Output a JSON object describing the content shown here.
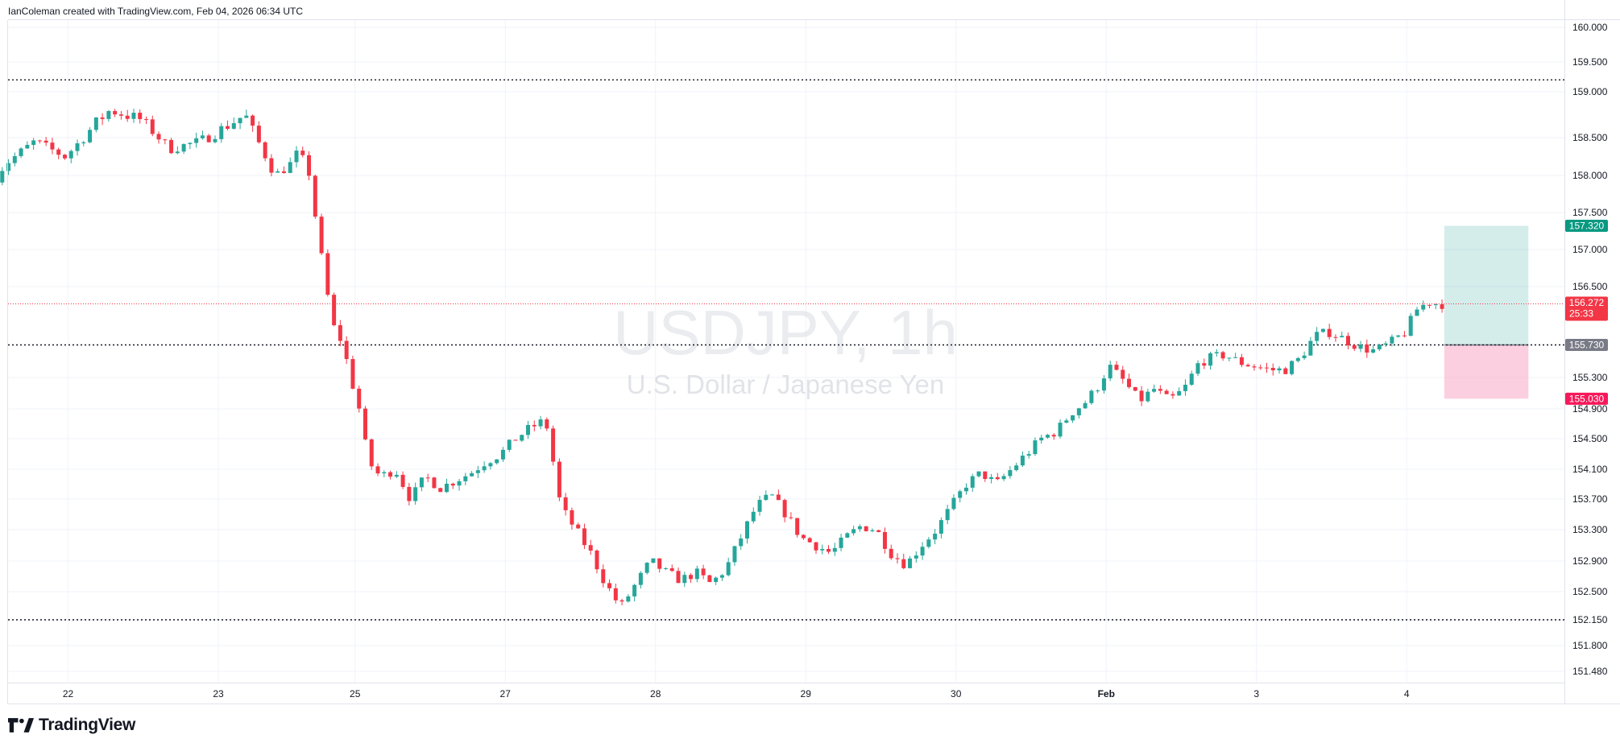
{
  "header": {
    "attribution": "IanColeman created with TradingView.com, Feb 04, 2026 06:34 UTC"
  },
  "watermark": {
    "title": "USDJPY, 1h",
    "subtitle": "U.S. Dollar / Japanese Yen"
  },
  "branding": {
    "logo_text": "TradingView",
    "logo_icon": "tradingview-logo-icon"
  },
  "colors": {
    "up": "#26a69a",
    "down": "#f23645",
    "grid": "#f0f3fa",
    "axis_border": "#e0e3eb",
    "dotted_level": "#131722",
    "price_line": "#f23645",
    "target_fill": "#26a69a",
    "stop_fill": "#f7a8c4",
    "neutral_tag": "#787b86"
  },
  "chart_data": {
    "type": "candlestick",
    "symbol": "USDJPY",
    "interval": "1h",
    "y_axis": {
      "ticks": [
        "160.000",
        "159.500",
        "159.000",
        "158.500",
        "158.000",
        "157.500",
        "157.000",
        "156.500",
        "155.300",
        "154.900",
        "154.500",
        "154.100",
        "153.700",
        "153.300",
        "152.900",
        "152.500",
        "152.150",
        "151.800",
        "151.480"
      ]
    },
    "x_axis": {
      "ticks": [
        {
          "label": "22",
          "pos": 0.48
        },
        {
          "label": "23",
          "pos": 1.48
        },
        {
          "label": "25",
          "pos": 2.39
        },
        {
          "label": "27",
          "pos": 3.39
        },
        {
          "label": "28",
          "pos": 4.39
        },
        {
          "label": "29",
          "pos": 5.39
        },
        {
          "label": "30",
          "pos": 6.39
        },
        {
          "label": "Feb",
          "pos": 7.39
        },
        {
          "label": "3",
          "pos": 8.39
        },
        {
          "label": "4",
          "pos": 9.39
        }
      ]
    },
    "levels": {
      "horizontal_dotted": [
        159.2,
        155.73,
        152.15
      ],
      "current_price": 156.272
    },
    "price_tags": [
      {
        "name": "target",
        "value": "157.320",
        "color": "#089981"
      },
      {
        "name": "last",
        "value": "156.272",
        "countdown": "25:33",
        "color": "#f23645"
      },
      {
        "name": "entry",
        "value": "155.730",
        "color": "#787b86"
      },
      {
        "name": "stop",
        "value": "155.030",
        "color": "#f7185a"
      }
    ],
    "position": {
      "entry": 155.73,
      "target": 157.32,
      "stop": 155.03,
      "start_pos": 9.64,
      "end_pos": 10.2
    },
    "waypoints": [
      [
        0.0,
        157.85
      ],
      [
        0.1,
        158.15
      ],
      [
        0.2,
        158.3
      ],
      [
        0.3,
        158.45
      ],
      [
        0.4,
        158.35
      ],
      [
        0.5,
        158.25
      ],
      [
        0.6,
        158.45
      ],
      [
        0.7,
        158.65
      ],
      [
        0.8,
        158.8
      ],
      [
        0.9,
        158.75
      ],
      [
        1.0,
        158.7
      ],
      [
        1.1,
        158.55
      ],
      [
        1.2,
        158.35
      ],
      [
        1.3,
        158.4
      ],
      [
        1.4,
        158.45
      ],
      [
        1.5,
        158.55
      ],
      [
        1.6,
        158.65
      ],
      [
        1.7,
        158.75
      ],
      [
        1.8,
        158.4
      ],
      [
        1.9,
        158.0
      ],
      [
        2.0,
        158.15
      ],
      [
        2.05,
        158.3
      ],
      [
        2.12,
        158.1
      ],
      [
        2.2,
        157.0
      ],
      [
        2.28,
        156.0
      ],
      [
        2.35,
        155.75
      ],
      [
        2.4,
        155.3
      ],
      [
        2.45,
        155.0
      ],
      [
        2.52,
        154.2
      ],
      [
        2.6,
        154.0
      ],
      [
        2.7,
        154.1
      ],
      [
        2.8,
        153.7
      ],
      [
        2.9,
        154.0
      ],
      [
        3.0,
        153.85
      ],
      [
        3.1,
        153.95
      ],
      [
        3.2,
        154.05
      ],
      [
        3.3,
        154.2
      ],
      [
        3.4,
        154.3
      ],
      [
        3.5,
        154.5
      ],
      [
        3.6,
        154.65
      ],
      [
        3.7,
        154.75
      ],
      [
        3.75,
        154.2
      ],
      [
        3.8,
        153.6
      ],
      [
        3.9,
        153.3
      ],
      [
        4.0,
        153.0
      ],
      [
        4.1,
        152.6
      ],
      [
        4.2,
        152.3
      ],
      [
        4.3,
        152.6
      ],
      [
        4.4,
        152.9
      ],
      [
        4.5,
        152.75
      ],
      [
        4.6,
        152.65
      ],
      [
        4.7,
        152.75
      ],
      [
        4.8,
        152.6
      ],
      [
        4.9,
        152.8
      ],
      [
        5.0,
        153.2
      ],
      [
        5.1,
        153.6
      ],
      [
        5.2,
        153.75
      ],
      [
        5.3,
        153.5
      ],
      [
        5.4,
        153.2
      ],
      [
        5.5,
        153.1
      ],
      [
        5.6,
        153.0
      ],
      [
        5.7,
        153.2
      ],
      [
        5.8,
        153.35
      ],
      [
        5.9,
        153.3
      ],
      [
        6.0,
        153.0
      ],
      [
        6.1,
        152.85
      ],
      [
        6.2,
        153.1
      ],
      [
        6.3,
        153.3
      ],
      [
        6.4,
        153.6
      ],
      [
        6.5,
        153.9
      ],
      [
        6.6,
        154.05
      ],
      [
        6.7,
        153.9
      ],
      [
        6.8,
        154.1
      ],
      [
        6.9,
        154.3
      ],
      [
        7.0,
        154.5
      ],
      [
        7.1,
        154.6
      ],
      [
        7.2,
        154.85
      ],
      [
        7.3,
        155.0
      ],
      [
        7.38,
        155.2
      ],
      [
        7.45,
        155.45
      ],
      [
        7.55,
        155.25
      ],
      [
        7.65,
        155.0
      ],
      [
        7.75,
        155.15
      ],
      [
        7.85,
        155.0
      ],
      [
        7.95,
        155.15
      ],
      [
        8.05,
        155.5
      ],
      [
        8.12,
        155.55
      ],
      [
        8.22,
        155.6
      ],
      [
        8.32,
        155.5
      ],
      [
        8.42,
        155.45
      ],
      [
        8.52,
        155.4
      ],
      [
        8.62,
        155.4
      ],
      [
        8.72,
        155.55
      ],
      [
        8.82,
        155.85
      ],
      [
        8.92,
        155.9
      ],
      [
        9.02,
        155.8
      ],
      [
        9.12,
        155.7
      ],
      [
        9.22,
        155.65
      ],
      [
        9.32,
        155.75
      ],
      [
        9.42,
        155.9
      ],
      [
        9.5,
        156.2
      ],
      [
        9.58,
        156.3
      ],
      [
        9.63,
        156.272
      ]
    ]
  }
}
